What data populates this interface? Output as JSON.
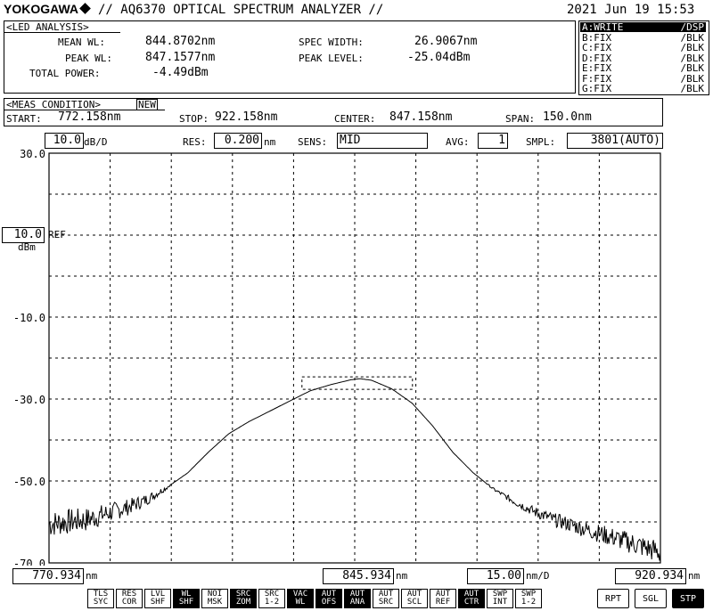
{
  "header": {
    "brand": "YOKOGAWA",
    "title": "// AQ6370 OPTICAL SPECTRUM ANALYZER //",
    "datetime": "2021 Jun 19 15:53"
  },
  "analysis": {
    "label": "<LED ANALYSIS>",
    "mean_wl_label": "MEAN WL:",
    "mean_wl": "844.8702nm",
    "peak_wl_label": "PEAK WL:",
    "peak_wl": "847.1577nm",
    "total_power_label": "TOTAL POWER:",
    "total_power": "-4.49dBm",
    "spec_width_label": "SPEC WIDTH:",
    "spec_width": "26.9067nm",
    "peak_level_label": "PEAK LEVEL:",
    "peak_level": "-25.04dBm"
  },
  "traces": [
    {
      "name": "A:WRITE",
      "mode": "/DSP",
      "active": true
    },
    {
      "name": "B:FIX",
      "mode": "/BLK",
      "active": false
    },
    {
      "name": "C:FIX",
      "mode": "/BLK",
      "active": false
    },
    {
      "name": "D:FIX",
      "mode": "/BLK",
      "active": false
    },
    {
      "name": "E:FIX",
      "mode": "/BLK",
      "active": false
    },
    {
      "name": "F:FIX",
      "mode": "/BLK",
      "active": false
    },
    {
      "name": "G:FIX",
      "mode": "/BLK",
      "active": false
    }
  ],
  "meas": {
    "label": "<MEAS CONDITION>",
    "new_badge": "NEW",
    "start_label": "START:",
    "start": "772.158nm",
    "stop_label": "STOP:",
    "stop": "922.158nm",
    "center_label": "CENTER:",
    "center": "847.158nm",
    "span_label": "SPAN:",
    "span": "150.0nm"
  },
  "settings": {
    "scale": "10.0",
    "scale_unit": "dB/D",
    "res_label": "RES:",
    "res": "0.200",
    "res_unit": "nm",
    "sens_label": "SENS:",
    "sens": "MID",
    "avg_label": "AVG:",
    "avg": "1",
    "smpl_label": "SMPL:",
    "smpl": "3801(AUTO)"
  },
  "ref": {
    "value": "10.0",
    "tag": "REF",
    "unit": "dBm"
  },
  "bottom": {
    "start_value": "770.934",
    "start_unit": "nm",
    "center_value": "845.934",
    "center_unit": "nm",
    "div_value": "15.00",
    "div_unit": "nm/D",
    "stop_value": "920.934",
    "stop_unit": "nm"
  },
  "softkeys": [
    {
      "l1": "TLS",
      "l2": "SYC",
      "on": false
    },
    {
      "l1": "RES",
      "l2": "COR",
      "on": false
    },
    {
      "l1": "LVL",
      "l2": "SHF",
      "on": false
    },
    {
      "l1": "WL",
      "l2": "SHF",
      "on": true
    },
    {
      "l1": "NOI",
      "l2": "MSK",
      "on": false
    },
    {
      "l1": "SRC",
      "l2": "ZOM",
      "on": true
    },
    {
      "l1": "SRC",
      "l2": "1-2",
      "on": false
    },
    {
      "l1": "VAC",
      "l2": "WL",
      "on": true
    },
    {
      "l1": "AUT",
      "l2": "OFS",
      "on": true
    },
    {
      "l1": "AUT",
      "l2": "ANA",
      "on": true
    },
    {
      "l1": "AUT",
      "l2": "SRC",
      "on": false
    },
    {
      "l1": "AUT",
      "l2": "SCL",
      "on": false
    },
    {
      "l1": "AUT",
      "l2": "REF",
      "on": false
    },
    {
      "l1": "AUT",
      "l2": "CTR",
      "on": true
    },
    {
      "l1": "SWP",
      "l2": "INT",
      "on": false
    },
    {
      "l1": "SWP",
      "l2": "1-2",
      "on": false
    }
  ],
  "sweep_keys": [
    {
      "label": "RPT",
      "on": false
    },
    {
      "label": "SGL",
      "on": false
    },
    {
      "label": "STP",
      "on": true
    }
  ],
  "chart_data": {
    "type": "line",
    "xlim": [
      770.934,
      920.934
    ],
    "ylim": [
      -70,
      30
    ],
    "ytick_labels": [
      "30.0",
      "-10.0",
      "-30.0",
      "-50.0",
      "-70.0"
    ],
    "ytick_values": [
      30,
      -10,
      -30,
      -50,
      -70
    ],
    "grid": true,
    "series": [
      {
        "x": [
          770.934,
          775,
          780,
          785,
          790,
          795,
          800,
          805,
          810,
          815,
          820,
          825,
          830,
          835,
          840,
          845,
          847.2,
          850,
          855,
          860,
          865,
          870,
          875,
          880,
          885,
          890,
          895,
          900,
          905,
          910,
          915,
          920.934
        ],
        "values": [
          -60.5,
          -60,
          -59.5,
          -58,
          -56.5,
          -54.5,
          -51.5,
          -48,
          -43,
          -38.5,
          -35.5,
          -33,
          -30.5,
          -28,
          -26.5,
          -25.3,
          -25.04,
          -25.4,
          -27.5,
          -31,
          -36.5,
          -43,
          -48,
          -52,
          -55,
          -57.5,
          -59.5,
          -61,
          -62.5,
          -64,
          -65.5,
          -67.5
        ]
      }
    ]
  }
}
